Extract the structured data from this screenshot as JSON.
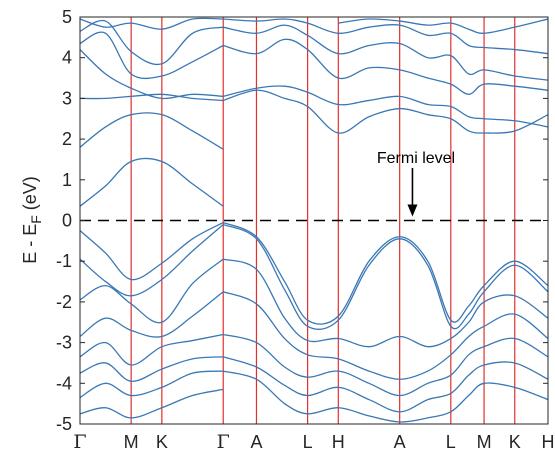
{
  "chart_data": {
    "type": "line",
    "title": "",
    "xlabel": "",
    "ylabel": "E - E_F (eV)",
    "ylabel_parts": {
      "main": "E - E",
      "sub": "F",
      "unit": " (eV)"
    },
    "ylim": [
      -5,
      5
    ],
    "yticks": [
      "-5",
      "-4",
      "-3",
      "-2",
      "-1",
      "0",
      "1",
      "2",
      "3",
      "4",
      "5"
    ],
    "kpath": [
      {
        "label": "Γ",
        "x": 0.0
      },
      {
        "label": "M",
        "x": 1.0
      },
      {
        "label": "K",
        "x": 1.6
      },
      {
        "label": "Γ",
        "x": 2.8
      },
      {
        "label": "A",
        "x": 3.45
      },
      {
        "label": "L",
        "x": 4.45
      },
      {
        "label": "H",
        "x": 5.05
      },
      {
        "label": "A",
        "x": 6.25
      },
      {
        "label": "L",
        "x": 7.25
      },
      {
        "label": "M",
        "x": 7.9
      },
      {
        "label": "K",
        "x": 8.5
      },
      {
        "label": "H",
        "x": 9.15
      }
    ],
    "fermi_level": 0,
    "grid": false,
    "colors": {
      "bands": "#3a78b5",
      "kpath_lines": "#e0302a",
      "fermi_line": "#000000",
      "axis": "#262626"
    },
    "annotation": {
      "text": "Fermi level",
      "arrow_to": {
        "x": 6.5,
        "y": 0.05
      }
    },
    "bands_conduction": [
      [
        [
          0,
          0.35
        ],
        [
          0.5,
          0.85
        ],
        [
          1,
          1.45
        ],
        [
          1.6,
          1.45
        ],
        [
          2.2,
          0.9
        ],
        [
          2.8,
          0.35
        ]
      ],
      [
        [
          0,
          1.8
        ],
        [
          0.5,
          2.3
        ],
        [
          1,
          2.6
        ],
        [
          1.6,
          2.6
        ],
        [
          2.2,
          2.2
        ],
        [
          2.8,
          1.75
        ]
      ],
      [
        [
          0,
          3.0
        ],
        [
          0.5,
          3.0
        ],
        [
          1,
          3.05
        ],
        [
          1.6,
          3.1
        ],
        [
          2.2,
          3.0
        ],
        [
          2.8,
          2.95
        ]
      ],
      [
        [
          0,
          4.2
        ],
        [
          0.5,
          3.6
        ],
        [
          1,
          3.25
        ],
        [
          1.6,
          3.0
        ],
        [
          2.2,
          3.1
        ],
        [
          2.8,
          3.05
        ]
      ],
      [
        [
          0,
          4.35
        ],
        [
          0.5,
          4.6
        ],
        [
          1,
          3.6
        ],
        [
          1.6,
          3.55
        ],
        [
          2.2,
          3.9
        ],
        [
          2.8,
          4.3
        ]
      ],
      [
        [
          0,
          4.65
        ],
        [
          0.5,
          4.9
        ],
        [
          1,
          4.15
        ],
        [
          1.6,
          3.85
        ],
        [
          2.2,
          4.6
        ],
        [
          2.8,
          4.75
        ]
      ],
      [
        [
          0,
          4.95
        ],
        [
          0.5,
          4.75
        ],
        [
          1,
          4.85
        ],
        [
          1.6,
          4.7
        ],
        [
          2.2,
          4.95
        ],
        [
          2.8,
          4.95
        ]
      ],
      [
        [
          2.8,
          2.95
        ],
        [
          3.45,
          3.2
        ],
        [
          4.0,
          3.0
        ],
        [
          4.45,
          2.8
        ],
        [
          5.05,
          2.15
        ],
        [
          5.65,
          2.55
        ],
        [
          6.25,
          2.75
        ],
        [
          6.8,
          2.6
        ],
        [
          7.25,
          2.5
        ],
        [
          7.6,
          2.2
        ],
        [
          7.9,
          2.15
        ],
        [
          8.5,
          2.2
        ],
        [
          9.15,
          2.6
        ]
      ],
      [
        [
          2.8,
          3.05
        ],
        [
          3.45,
          3.25
        ],
        [
          4.0,
          3.3
        ],
        [
          4.45,
          3.15
        ],
        [
          5.05,
          2.85
        ],
        [
          5.65,
          2.95
        ],
        [
          6.25,
          3.05
        ],
        [
          6.8,
          2.85
        ],
        [
          7.25,
          2.8
        ],
        [
          7.6,
          2.55
        ],
        [
          7.9,
          2.5
        ],
        [
          8.5,
          2.45
        ],
        [
          9.15,
          2.3
        ]
      ],
      [
        [
          2.8,
          4.3
        ],
        [
          3.45,
          4.1
        ],
        [
          4.0,
          4.45
        ],
        [
          4.45,
          4.2
        ],
        [
          5.05,
          3.5
        ],
        [
          5.65,
          3.75
        ],
        [
          6.25,
          3.7
        ],
        [
          6.8,
          3.5
        ],
        [
          7.25,
          3.35
        ],
        [
          7.6,
          3.1
        ],
        [
          7.9,
          3.35
        ],
        [
          8.5,
          3.3
        ],
        [
          9.15,
          3.2
        ]
      ],
      [
        [
          2.8,
          4.75
        ],
        [
          3.45,
          4.6
        ],
        [
          4.0,
          4.8
        ],
        [
          4.45,
          4.55
        ],
        [
          5.05,
          4.1
        ],
        [
          5.65,
          4.3
        ],
        [
          6.25,
          4.35
        ],
        [
          6.8,
          4.0
        ],
        [
          7.25,
          4.05
        ],
        [
          7.6,
          3.6
        ],
        [
          7.9,
          3.7
        ],
        [
          8.5,
          3.55
        ],
        [
          9.15,
          3.45
        ]
      ],
      [
        [
          2.8,
          4.95
        ],
        [
          3.45,
          4.9
        ],
        [
          4.0,
          4.95
        ],
        [
          4.45,
          4.85
        ],
        [
          5.05,
          4.6
        ],
        [
          5.65,
          4.75
        ],
        [
          6.25,
          4.8
        ],
        [
          6.8,
          4.55
        ],
        [
          7.25,
          4.6
        ],
        [
          7.6,
          4.3
        ],
        [
          7.9,
          4.25
        ],
        [
          8.5,
          4.2
        ],
        [
          9.15,
          4.1
        ]
      ],
      [
        [
          5.05,
          4.85
        ],
        [
          5.65,
          4.95
        ],
        [
          6.25,
          4.9
        ],
        [
          6.8,
          4.8
        ],
        [
          7.25,
          4.85
        ],
        [
          7.6,
          4.7
        ],
        [
          7.9,
          4.6
        ],
        [
          8.5,
          4.75
        ],
        [
          9.15,
          4.95
        ]
      ]
    ],
    "bands_valence": [
      [
        [
          0,
          -0.25
        ],
        [
          0.5,
          -0.8
        ],
        [
          1,
          -1.45
        ],
        [
          1.6,
          -1.05
        ],
        [
          2.2,
          -0.45
        ],
        [
          2.8,
          -0.05
        ]
      ],
      [
        [
          0,
          -0.95
        ],
        [
          0.5,
          -1.5
        ],
        [
          1,
          -1.85
        ],
        [
          1.6,
          -1.45
        ],
        [
          2.2,
          -0.75
        ],
        [
          2.8,
          -0.1
        ]
      ],
      [
        [
          0,
          -1.95
        ],
        [
          0.5,
          -1.6
        ],
        [
          1,
          -2.05
        ],
        [
          1.6,
          -2.5
        ],
        [
          2.2,
          -1.55
        ],
        [
          2.8,
          -0.95
        ]
      ],
      [
        [
          0,
          -2.85
        ],
        [
          0.5,
          -2.4
        ],
        [
          1,
          -2.7
        ],
        [
          1.6,
          -2.85
        ],
        [
          2.2,
          -2.35
        ],
        [
          2.8,
          -1.75
        ]
      ],
      [
        [
          0,
          -3.35
        ],
        [
          0.5,
          -3.0
        ],
        [
          1,
          -3.55
        ],
        [
          1.6,
          -3.1
        ],
        [
          2.2,
          -2.95
        ],
        [
          2.8,
          -2.8
        ]
      ],
      [
        [
          0,
          -3.75
        ],
        [
          0.5,
          -3.5
        ],
        [
          1,
          -3.95
        ],
        [
          1.6,
          -3.65
        ],
        [
          2.2,
          -3.4
        ],
        [
          2.8,
          -3.35
        ]
      ],
      [
        [
          0,
          -4.35
        ],
        [
          0.5,
          -4.0
        ],
        [
          1,
          -4.3
        ],
        [
          1.6,
          -4.1
        ],
        [
          2.2,
          -3.75
        ],
        [
          2.8,
          -3.7
        ]
      ],
      [
        [
          0,
          -4.75
        ],
        [
          0.5,
          -4.6
        ],
        [
          1,
          -4.85
        ],
        [
          1.6,
          -4.6
        ],
        [
          2.2,
          -4.3
        ],
        [
          2.8,
          -4.15
        ]
      ],
      [
        [
          2.8,
          -0.05
        ],
        [
          3.45,
          -0.4
        ],
        [
          4.0,
          -1.5
        ],
        [
          4.45,
          -2.45
        ],
        [
          5.05,
          -2.35
        ],
        [
          5.65,
          -1.0
        ],
        [
          6.25,
          -0.4
        ],
        [
          6.8,
          -1.0
        ],
        [
          7.25,
          -2.45
        ],
        [
          7.6,
          -2.1
        ],
        [
          7.9,
          -1.6
        ],
        [
          8.5,
          -1.0
        ],
        [
          9.15,
          -1.6
        ]
      ],
      [
        [
          2.8,
          -0.1
        ],
        [
          3.45,
          -0.45
        ],
        [
          4.0,
          -1.7
        ],
        [
          4.45,
          -2.6
        ],
        [
          5.05,
          -2.45
        ],
        [
          5.65,
          -1.1
        ],
        [
          6.25,
          -0.45
        ],
        [
          6.8,
          -1.1
        ],
        [
          7.25,
          -2.6
        ],
        [
          7.6,
          -2.3
        ],
        [
          7.9,
          -1.75
        ],
        [
          8.5,
          -1.1
        ],
        [
          9.15,
          -1.75
        ]
      ],
      [
        [
          2.8,
          -0.95
        ],
        [
          3.45,
          -1.2
        ],
        [
          4.0,
          -2.4
        ],
        [
          4.45,
          -2.95
        ],
        [
          5.05,
          -2.9
        ],
        [
          5.65,
          -3.1
        ],
        [
          6.25,
          -2.85
        ],
        [
          6.8,
          -3.1
        ],
        [
          7.25,
          -2.9
        ],
        [
          7.6,
          -2.5
        ],
        [
          7.9,
          -2.0
        ],
        [
          8.5,
          -1.85
        ],
        [
          9.15,
          -2.4
        ]
      ],
      [
        [
          2.8,
          -1.75
        ],
        [
          3.45,
          -2.05
        ],
        [
          4.0,
          -2.9
        ],
        [
          4.45,
          -3.3
        ],
        [
          5.05,
          -3.4
        ],
        [
          5.65,
          -3.7
        ],
        [
          6.25,
          -3.9
        ],
        [
          6.8,
          -3.7
        ],
        [
          7.25,
          -3.3
        ],
        [
          7.6,
          -2.85
        ],
        [
          7.9,
          -2.6
        ],
        [
          8.5,
          -2.3
        ],
        [
          9.15,
          -2.9
        ]
      ],
      [
        [
          2.8,
          -2.8
        ],
        [
          3.45,
          -3.0
        ],
        [
          4.0,
          -3.6
        ],
        [
          4.45,
          -3.85
        ],
        [
          5.05,
          -3.7
        ],
        [
          5.65,
          -4.0
        ],
        [
          6.25,
          -4.3
        ],
        [
          6.8,
          -4.0
        ],
        [
          7.25,
          -3.8
        ],
        [
          7.6,
          -3.3
        ],
        [
          7.9,
          -3.1
        ],
        [
          8.5,
          -2.9
        ],
        [
          9.15,
          -3.35
        ]
      ],
      [
        [
          2.8,
          -3.35
        ],
        [
          3.45,
          -3.6
        ],
        [
          4.0,
          -4.05
        ],
        [
          4.45,
          -4.3
        ],
        [
          5.05,
          -4.1
        ],
        [
          5.65,
          -4.4
        ],
        [
          6.25,
          -4.7
        ],
        [
          6.8,
          -4.4
        ],
        [
          7.25,
          -4.25
        ],
        [
          7.6,
          -3.8
        ],
        [
          7.9,
          -3.55
        ],
        [
          8.5,
          -3.5
        ],
        [
          9.15,
          -3.9
        ]
      ],
      [
        [
          2.8,
          -3.7
        ],
        [
          3.45,
          -3.9
        ],
        [
          4.0,
          -4.5
        ],
        [
          4.45,
          -4.75
        ],
        [
          5.05,
          -4.6
        ],
        [
          5.65,
          -4.8
        ],
        [
          6.25,
          -4.95
        ],
        [
          6.8,
          -4.85
        ],
        [
          7.25,
          -4.7
        ],
        [
          7.6,
          -4.3
        ],
        [
          7.9,
          -4.0
        ],
        [
          8.5,
          -4.1
        ],
        [
          9.15,
          -4.4
        ]
      ]
    ]
  }
}
